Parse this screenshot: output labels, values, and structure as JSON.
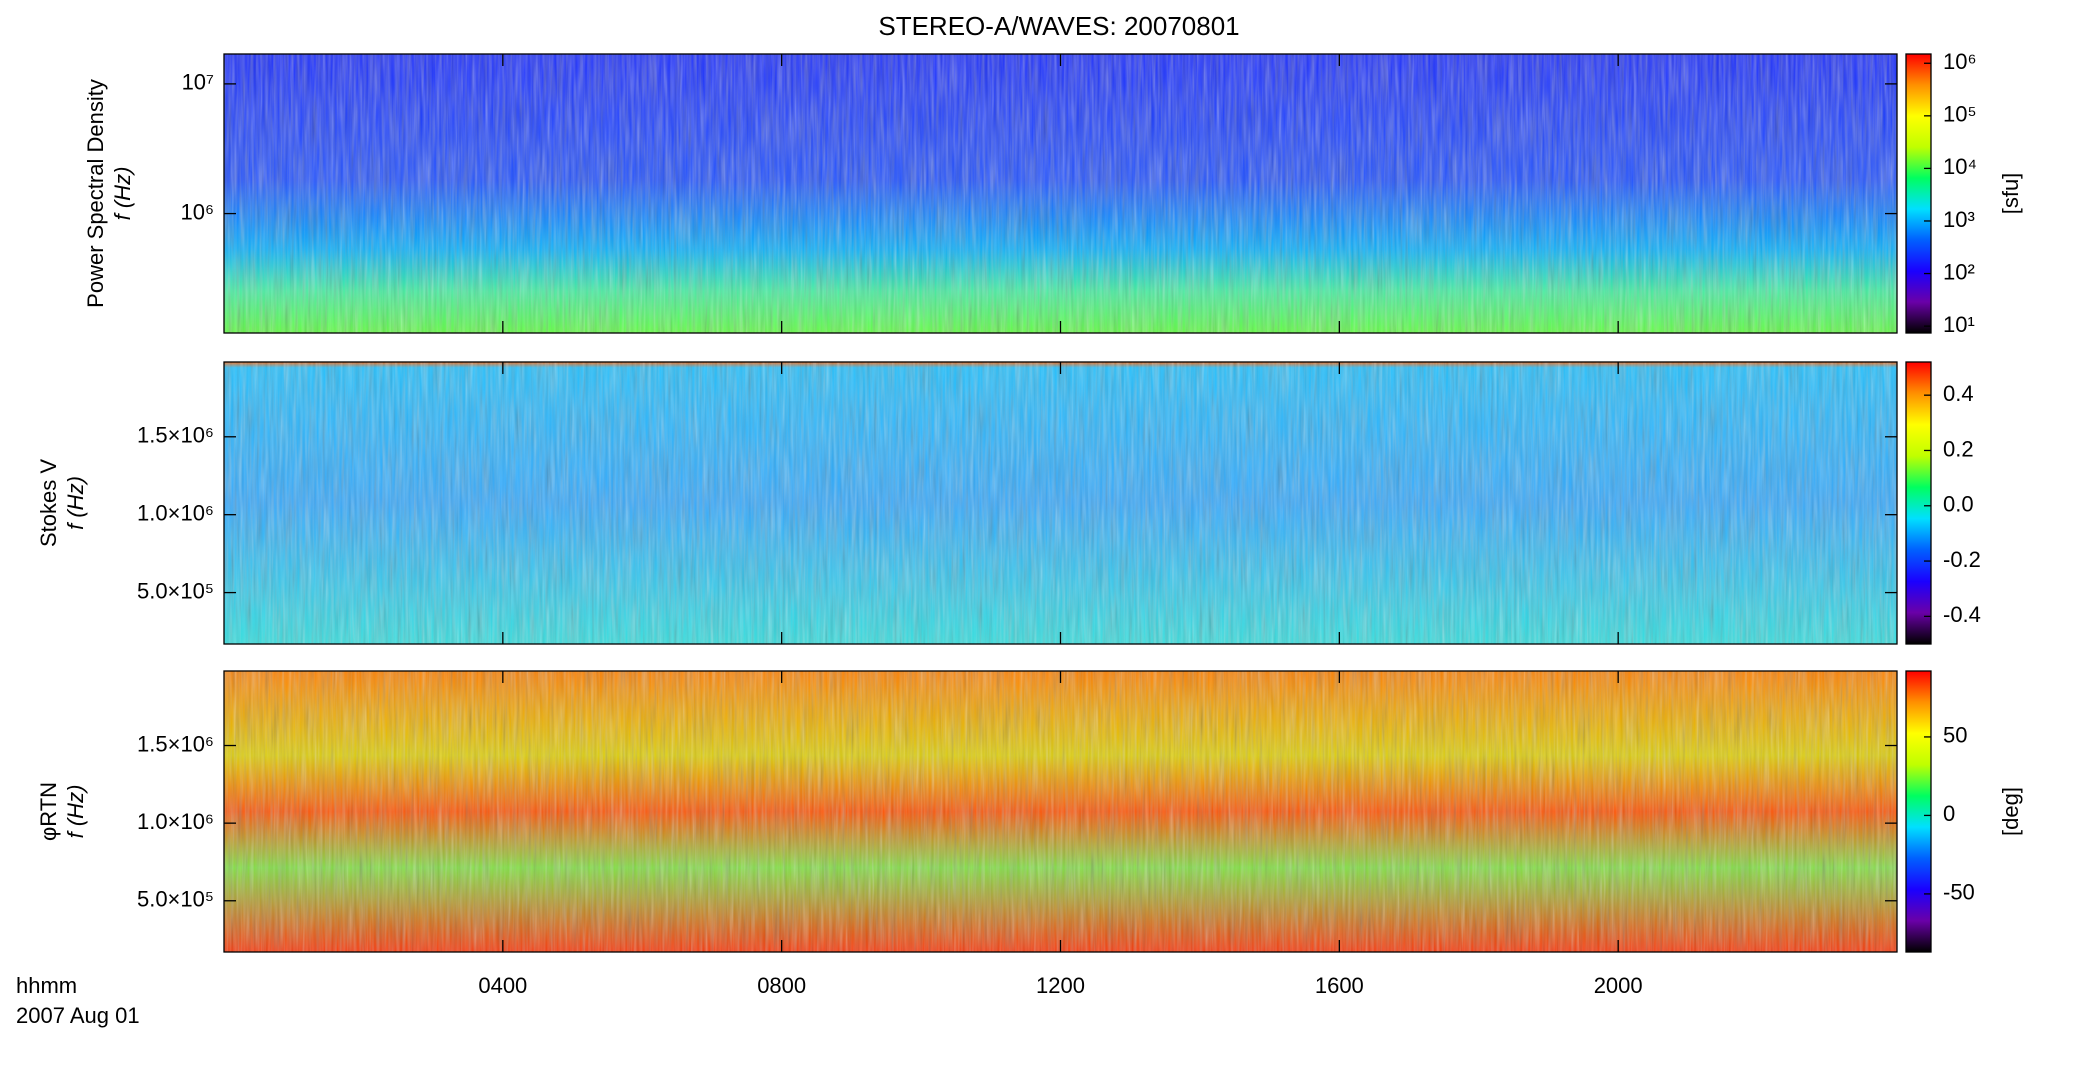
{
  "title": "STEREO-A/WAVES: 20070801",
  "x_axis": {
    "label": "hhmm",
    "date": "2007 Aug 01",
    "xlim": [
      0,
      24
    ],
    "xticks": [
      {
        "value": 4,
        "label": "0400"
      },
      {
        "value": 8,
        "label": "0800"
      },
      {
        "value": 12,
        "label": "1200"
      },
      {
        "value": 16,
        "label": "1600"
      },
      {
        "value": 20,
        "label": "2000"
      }
    ]
  },
  "colormap": [
    "#000000",
    "#6a00a8",
    "#1a00ff",
    "#0060ff",
    "#00e0ff",
    "#00ff60",
    "#c0ff00",
    "#ffff00",
    "#ff9000",
    "#ff0000"
  ],
  "chart_data": [
    {
      "type": "spectrogram",
      "ylabel": "Power Spectral Density",
      "ylabel2": "f (Hz)",
      "yscale": "log",
      "ylim": [
        120000,
        17000000
      ],
      "yticks": [
        {
          "value": 1000000,
          "label": "10⁶"
        },
        {
          "value": 10000000,
          "label": "10⁷"
        }
      ],
      "colorbar": {
        "scale": "log",
        "lim": [
          7.4,
          1500000
        ],
        "label": "[sfu]",
        "ticks": [
          {
            "value": 10,
            "label": "10¹"
          },
          {
            "value": 100,
            "label": "10²"
          },
          {
            "value": 1000,
            "label": "10³"
          },
          {
            "value": 10000,
            "label": "10⁴"
          },
          {
            "value": 100000,
            "label": "10⁵"
          },
          {
            "value": 1000000,
            "label": "10⁶"
          }
        ]
      }
    },
    {
      "type": "spectrogram",
      "ylabel": "Stokes V",
      "ylabel2": "f (Hz)",
      "yscale": "linear",
      "ylim": [
        170000,
        1980000
      ],
      "yticks": [
        {
          "value": 500000,
          "label": "5.0×10⁵"
        },
        {
          "value": 1000000,
          "label": "1.0×10⁶"
        },
        {
          "value": 1500000,
          "label": "1.5×10⁶"
        }
      ],
      "colorbar": {
        "scale": "linear",
        "lim": [
          -0.5,
          0.52
        ],
        "ticks": [
          -0.4,
          -0.2,
          {
            "value": 0,
            "label": "0.0"
          },
          0.2,
          0.4
        ]
      }
    },
    {
      "type": "spectrogram",
      "ylabel": "φRTN",
      "ylabel2": "f (Hz)",
      "yscale": "linear",
      "ylim": [
        170000,
        1980000
      ],
      "yticks": [
        {
          "value": 500000,
          "label": "5.0×10⁵"
        },
        {
          "value": 1000000,
          "label": "1.0×10⁶"
        },
        {
          "value": 1500000,
          "label": "1.5×10⁶"
        }
      ],
      "colorbar": {
        "scale": "linear",
        "lim": [
          -87,
          92
        ],
        "label": "[deg]",
        "ticks": [
          -50,
          0,
          50
        ]
      }
    }
  ]
}
